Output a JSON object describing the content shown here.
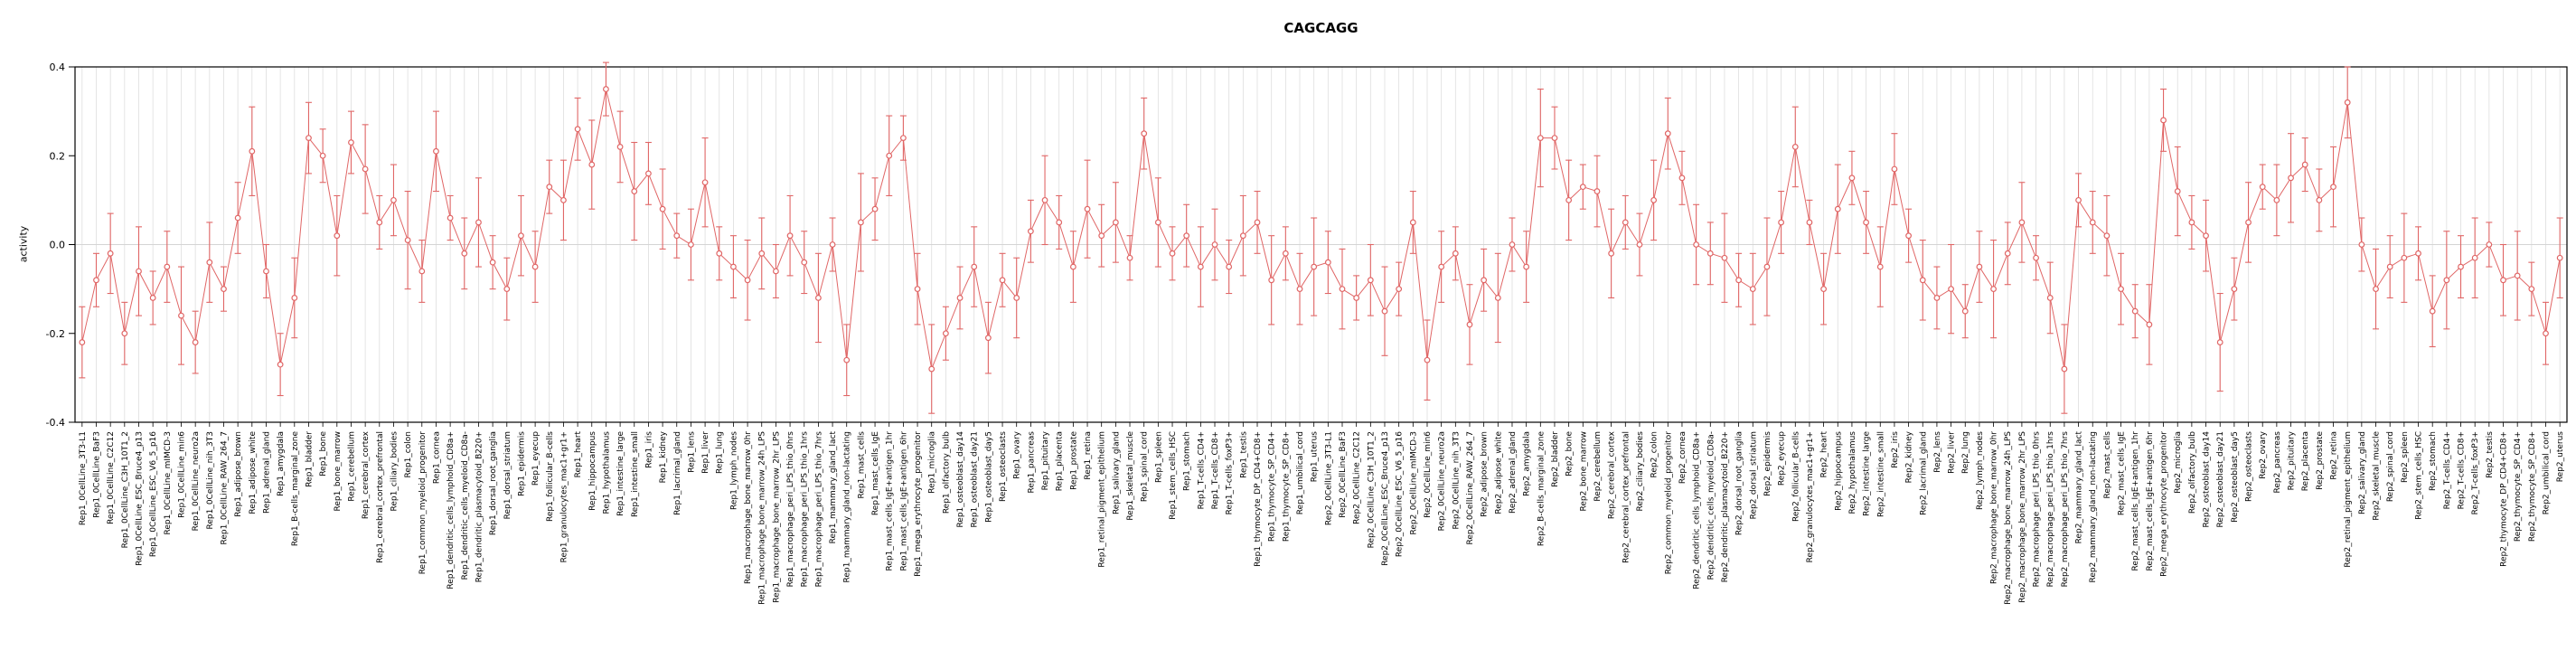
{
  "chart_data": {
    "type": "scatter",
    "title": "CAGCAGG",
    "xlabel": "",
    "ylabel": "activity",
    "ylim": [
      -0.4,
      0.4
    ],
    "yticks": [
      -0.4,
      -0.2,
      0.0,
      0.2,
      0.4
    ],
    "ytick_labels": [
      "-0.4",
      "-0.2",
      "0.0",
      "0.2",
      "0.4"
    ],
    "legend": "none",
    "grid": "vertical-per-category",
    "error_bars": true,
    "x_labels_rotated_90": true,
    "marker": "open-circle",
    "connect_points": true,
    "categories": [
      "Rep1_0CellLine_3T3-L1",
      "Rep1_0CellLine_BaF3",
      "Rep1_0CellLine_C2C12",
      "Rep1_0CellLine_C3H_10T1_2",
      "Rep1_0CellLine_ESC_Bruce4_p13",
      "Rep1_0CellLine_ESC_V6_5_p16",
      "Rep1_0CellLine_mIMCD-3",
      "Rep1_0CellLine_min6",
      "Rep1_0CellLine_neuro2a",
      "Rep1_0CellLine_nih_3T3",
      "Rep1_0CellLine_RAW_264_7",
      "Rep1_adipose_brown",
      "Rep1_adipose_white",
      "Rep1_adrenal_gland",
      "Rep1_amygdala",
      "Rep1_B-cells_marginal_zone",
      "Rep1_bladder",
      "Rep1_bone",
      "Rep1_bone_marrow",
      "Rep1_cerebellum",
      "Rep1_cerebral_cortex",
      "Rep1_cerebral_cortex_prefrontal",
      "Rep1_ciliary_bodies",
      "Rep1_colon",
      "Rep1_common_myeloid_progenitor",
      "Rep1_cornea",
      "Rep1_dendritic_cells_lymphoid_CD8a+",
      "Rep1_dendritic_cells_myeloid_CD8a-",
      "Rep1_dendritic_plasmacytoid_B220+",
      "Rep1_dorsal_root_ganglia",
      "Rep1_dorsal_striatum",
      "Rep1_epidermis",
      "Rep1_eyecup",
      "Rep1_follicular_B-cells",
      "Rep1_granulocytes_mac1+gr1+",
      "Rep1_heart",
      "Rep1_hippocampus",
      "Rep1_hypothalamus",
      "Rep1_intestine_large",
      "Rep1_intestine_small",
      "Rep1_iris",
      "Rep1_kidney",
      "Rep1_lacrimal_gland",
      "Rep1_lens",
      "Rep1_liver",
      "Rep1_lung",
      "Rep1_lymph_nodes",
      "Rep1_macrophage_bone_marrow_0hr",
      "Rep1_macrophage_bone_marrow_24h_LPS",
      "Rep1_macrophage_bone_marrow_2hr_LPS",
      "Rep1_macrophage_peri_LPS_thio_0hrs",
      "Rep1_macrophage_peri_LPS_thio_1hrs",
      "Rep1_macrophage_peri_LPS_thio_7hrs",
      "Rep1_mammary_gland_lact",
      "Rep1_mammary_gland_non-lactating",
      "Rep1_mast_cells",
      "Rep1_mast_cells_IgE",
      "Rep1_mast_cells_IgE+antigen_1hr",
      "Rep1_mast_cells_IgE+antigen_6hr",
      "Rep1_mega_erythrocyte_progenitor",
      "Rep1_microglia",
      "Rep1_olfactory_bulb",
      "Rep1_osteoblast_day14",
      "Rep1_osteoblast_day21",
      "Rep1_osteoblast_day5",
      "Rep1_osteoclasts",
      "Rep1_ovary",
      "Rep1_pancreas",
      "Rep1_pituitary",
      "Rep1_placenta",
      "Rep1_prostate",
      "Rep1_retina",
      "Rep1_retinal_pigment_epithelium",
      "Rep1_salivary_gland",
      "Rep1_skeletal_muscle",
      "Rep1_spinal_cord",
      "Rep1_spleen",
      "Rep1_stem_cells_HSC",
      "Rep1_stomach",
      "Rep1_T-cells_CD4+",
      "Rep1_T-cells_CD8+",
      "Rep1_T-cells_foxP3+",
      "Rep1_testis",
      "Rep1_thymocyte_DP_CD4+CD8+",
      "Rep1_thymocyte_SP_CD4+",
      "Rep1_thymocyte_SP_CD8+",
      "Rep1_umbilical_cord",
      "Rep1_uterus",
      "Rep2_0CellLine_3T3-L1",
      "Rep2_0CellLine_BaF3",
      "Rep2_0CellLine_C2C12",
      "Rep2_0CellLine_C3H_10T1_2",
      "Rep2_0CellLine_ESC_Bruce4_p13",
      "Rep2_0CellLine_ESC_V6_5_p16",
      "Rep2_0CellLine_mIMCD-3",
      "Rep2_0CellLine_min6",
      "Rep2_0CellLine_neuro2a",
      "Rep2_0CellLine_nih_3T3",
      "Rep2_0CellLine_RAW_264_7",
      "Rep2_adipose_brown",
      "Rep2_adipose_white",
      "Rep2_adrenal_gland",
      "Rep2_amygdala",
      "Rep2_B-cells_marginal_zone",
      "Rep2_bladder",
      "Rep2_bone",
      "Rep2_bone_marrow",
      "Rep2_cerebellum",
      "Rep2_cerebral_cortex",
      "Rep2_cerebral_cortex_prefrontal",
      "Rep2_ciliary_bodies",
      "Rep2_colon",
      "Rep2_common_myeloid_progenitor",
      "Rep2_cornea",
      "Rep2_dendritic_cells_lymphoid_CD8a+",
      "Rep2_dendritic_cells_myeloid_CD8a-",
      "Rep2_dendritic_plasmacytoid_B220+",
      "Rep2_dorsal_root_ganglia",
      "Rep2_dorsal_striatum",
      "Rep2_epidermis",
      "Rep2_eyecup",
      "Rep2_follicular_B-cells",
      "Rep2_granulocytes_mac1+gr1+",
      "Rep2_heart",
      "Rep2_hippocampus",
      "Rep2_hypothalamus",
      "Rep2_intestine_large",
      "Rep2_intestine_small",
      "Rep2_iris",
      "Rep2_kidney",
      "Rep2_lacrimal_gland",
      "Rep2_lens",
      "Rep2_liver",
      "Rep2_lung",
      "Rep2_lymph_nodes",
      "Rep2_macrophage_bone_marrow_0hr",
      "Rep2_macrophage_bone_marrow_24h_LPS",
      "Rep2_macrophage_bone_marrow_2hr_LPS",
      "Rep2_macrophage_peri_LPS_thio_0hrs",
      "Rep2_macrophage_peri_LPS_thio_1hrs",
      "Rep2_macrophage_peri_LPS_thio_7hrs",
      "Rep2_mammary_gland_lact",
      "Rep2_mammary_gland_non-lactating",
      "Rep2_mast_cells",
      "Rep2_mast_cells_IgE",
      "Rep2_mast_cells_IgE+antigen_1hr",
      "Rep2_mast_cells_IgE+antigen_6hr",
      "Rep2_mega_erythrocyte_progenitor",
      "Rep2_microglia",
      "Rep2_olfactory_bulb",
      "Rep2_osteoblast_day14",
      "Rep2_osteoblast_day21",
      "Rep2_osteoblast_day5",
      "Rep2_osteoclasts",
      "Rep2_ovary",
      "Rep2_pancreas",
      "Rep2_pituitary",
      "Rep2_placenta",
      "Rep2_prostate",
      "Rep2_retina",
      "Rep2_retinal_pigment_epithelium",
      "Rep2_salivary_gland",
      "Rep2_skeletal_muscle",
      "Rep2_spinal_cord",
      "Rep2_spleen",
      "Rep2_stem_cells_HSC",
      "Rep2_stomach",
      "Rep2_T-cells_CD4+",
      "Rep2_T-cells_CD8+",
      "Rep2_T-cells_foxP3+",
      "Rep2_testis",
      "Rep2_thymocyte_DP_CD4+CD8+",
      "Rep2_thymocyte_SP_CD4+",
      "Rep2_thymocyte_SP_CD8+",
      "Rep2_umbilical_cord",
      "Rep2_uterus"
    ],
    "values": [
      -0.22,
      -0.08,
      -0.02,
      -0.2,
      -0.06,
      -0.12,
      -0.05,
      -0.16,
      -0.22,
      -0.04,
      -0.1,
      0.06,
      0.21,
      -0.06,
      -0.27,
      -0.12,
      0.24,
      0.2,
      0.02,
      0.23,
      0.17,
      0.05,
      0.1,
      0.01,
      -0.06,
      0.21,
      0.06,
      -0.02,
      0.05,
      -0.04,
      -0.1,
      0.02,
      -0.05,
      0.13,
      0.1,
      0.26,
      0.18,
      0.35,
      0.22,
      0.12,
      0.16,
      0.08,
      0.02,
      0.0,
      0.14,
      -0.02,
      -0.05,
      -0.08,
      -0.02,
      -0.06,
      0.02,
      -0.04,
      -0.12,
      0.0,
      -0.26,
      0.05,
      0.08,
      0.2,
      0.24,
      -0.1,
      -0.28,
      -0.2,
      -0.12,
      -0.05,
      -0.21,
      -0.08,
      -0.12,
      0.03,
      0.1,
      0.05,
      -0.05,
      0.08,
      0.02,
      0.05,
      -0.03,
      0.25,
      0.05,
      -0.02,
      0.02,
      -0.05,
      0.0,
      -0.05,
      0.02,
      0.05,
      -0.08,
      -0.02,
      -0.1,
      -0.05,
      -0.04,
      -0.1,
      -0.12,
      -0.08,
      -0.15,
      -0.1,
      0.05,
      -0.26,
      -0.05,
      -0.02,
      -0.18,
      -0.08,
      -0.12,
      0.0,
      -0.05,
      0.24,
      0.24,
      0.1,
      0.13,
      0.12,
      -0.02,
      0.05,
      0.0,
      0.1,
      0.25,
      0.15,
      0.0,
      -0.02,
      -0.03,
      -0.08,
      -0.1,
      -0.05,
      0.05,
      0.22,
      0.05,
      -0.1,
      0.08,
      0.15,
      0.05,
      -0.05,
      0.17,
      0.02,
      -0.08,
      -0.12,
      -0.1,
      -0.15,
      -0.05,
      -0.1,
      -0.02,
      0.05,
      -0.03,
      -0.12,
      -0.28,
      0.1,
      0.05,
      0.02,
      -0.1,
      -0.15,
      -0.18,
      0.28,
      0.12,
      0.05,
      0.02,
      -0.22,
      -0.1,
      0.05,
      0.13,
      0.1,
      0.15,
      0.18,
      0.1,
      0.13,
      0.32,
      0.0,
      -0.1,
      -0.05,
      -0.03,
      -0.02,
      -0.15,
      -0.08,
      -0.05,
      -0.03,
      0.0,
      -0.08,
      -0.07,
      -0.1,
      -0.2,
      -0.03
    ],
    "errors": [
      0.08,
      0.06,
      0.09,
      0.07,
      0.1,
      0.06,
      0.08,
      0.11,
      0.07,
      0.09,
      0.05,
      0.08,
      0.1,
      0.06,
      0.07,
      0.09,
      0.08,
      0.06,
      0.09,
      0.07,
      0.1,
      0.06,
      0.08,
      0.11,
      0.07,
      0.09,
      0.05,
      0.08,
      0.1,
      0.06,
      0.07,
      0.09,
      0.08,
      0.06,
      0.09,
      0.07,
      0.1,
      0.06,
      0.08,
      0.11,
      0.07,
      0.09,
      0.05,
      0.08,
      0.1,
      0.06,
      0.07,
      0.09,
      0.08,
      0.06,
      0.09,
      0.07,
      0.1,
      0.06,
      0.08,
      0.11,
      0.07,
      0.09,
      0.05,
      0.08,
      0.1,
      0.06,
      0.07,
      0.09,
      0.08,
      0.06,
      0.09,
      0.07,
      0.1,
      0.06,
      0.08,
      0.11,
      0.07,
      0.09,
      0.05,
      0.08,
      0.1,
      0.06,
      0.07,
      0.09,
      0.08,
      0.06,
      0.09,
      0.07,
      0.1,
      0.06,
      0.08,
      0.11,
      0.07,
      0.09,
      0.05,
      0.08,
      0.1,
      0.06,
      0.07,
      0.09,
      0.08,
      0.06,
      0.09,
      0.07,
      0.1,
      0.06,
      0.08,
      0.11,
      0.07,
      0.09,
      0.05,
      0.08,
      0.1,
      0.06,
      0.07,
      0.09,
      0.08,
      0.06,
      0.09,
      0.07,
      0.1,
      0.06,
      0.08,
      0.11,
      0.07,
      0.09,
      0.05,
      0.08,
      0.1,
      0.06,
      0.07,
      0.09,
      0.08,
      0.06,
      0.09,
      0.07,
      0.1,
      0.06,
      0.08,
      0.11,
      0.07,
      0.09,
      0.05,
      0.08,
      0.1,
      0.06,
      0.07,
      0.09,
      0.08,
      0.06,
      0.09,
      0.07,
      0.1,
      0.06,
      0.08,
      0.11,
      0.07,
      0.09,
      0.05,
      0.08,
      0.1,
      0.06,
      0.07,
      0.09,
      0.08,
      0.06,
      0.09,
      0.07,
      0.1,
      0.06,
      0.08,
      0.11,
      0.07,
      0.09,
      0.05,
      0.08,
      0.1,
      0.06,
      0.07,
      0.09
    ]
  },
  "colors": {
    "point": "#e06666",
    "line": "#e06666",
    "error_bar": "#e06666",
    "grid": "#dedede",
    "zero_line": "#d4d4d4",
    "axis": "#000000",
    "text": "#000000",
    "background": "#ffffff"
  }
}
